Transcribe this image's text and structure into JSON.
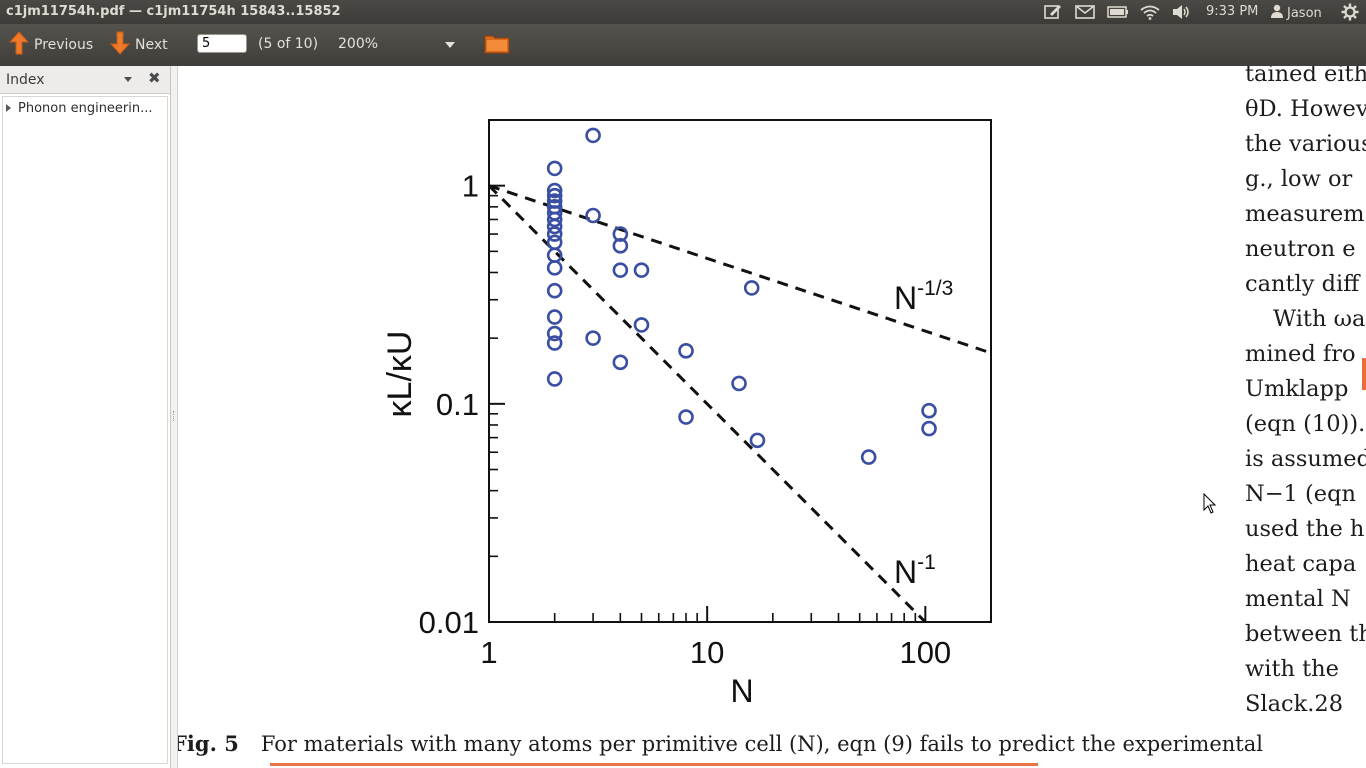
{
  "window": {
    "title": "c1jm11754h.pdf — c1jm11754h 15843..15852"
  },
  "panel": {
    "clock": "9:33 PM",
    "user": "Jason",
    "indicators": [
      "compose-icon",
      "mail-icon",
      "battery-icon",
      "wifi-icon",
      "volume-icon",
      "gear-icon"
    ]
  },
  "toolbar": {
    "previous_label": "Previous",
    "next_label": "Next",
    "page_value": "5",
    "page_count": "(5 of 10)",
    "zoom": "200%"
  },
  "sidebar": {
    "title": "Index",
    "items": [
      {
        "label": "Phonon engineerin..."
      }
    ]
  },
  "figure": {
    "caption_label": "Fig. 5",
    "caption_text": "For materials with many atoms per primitive cell (N), eqn (9) fails to predict the experimental"
  },
  "body_text": {
    "lines": [
      "tained eith",
      "θD. Howev",
      "the various",
      "g., low or",
      "measurem",
      "neutron e",
      "cantly diff",
      "With ωa",
      "mined fro",
      "Umklapp",
      "(eqn (10)).",
      "is assumed",
      "N−1 (eqn",
      "used the h",
      "heat capa",
      "mental N",
      "between th",
      "with the",
      "Slack.28"
    ]
  },
  "chart_data": {
    "type": "scatter",
    "title": "",
    "xlabel": "N",
    "ylabel": "κL/κU",
    "xscale": "log",
    "yscale": "log",
    "xlim": [
      1,
      200
    ],
    "ylim": [
      0.01,
      2
    ],
    "xticks": [
      1,
      10,
      100
    ],
    "xtick_labels": [
      "1",
      "10",
      "100"
    ],
    "yticks": [
      0.01,
      0.1,
      1
    ],
    "ytick_labels": [
      "0.01",
      "0.1",
      "1"
    ],
    "grid": false,
    "marker_color": "#3a4fa3",
    "points": [
      {
        "x": 2,
        "y": 1.2
      },
      {
        "x": 2,
        "y": 0.95
      },
      {
        "x": 2,
        "y": 0.9
      },
      {
        "x": 2,
        "y": 0.85
      },
      {
        "x": 2,
        "y": 0.8
      },
      {
        "x": 2,
        "y": 0.75
      },
      {
        "x": 2,
        "y": 0.7
      },
      {
        "x": 2,
        "y": 0.65
      },
      {
        "x": 2,
        "y": 0.6
      },
      {
        "x": 2,
        "y": 0.55
      },
      {
        "x": 2,
        "y": 0.48
      },
      {
        "x": 2,
        "y": 0.42
      },
      {
        "x": 2,
        "y": 0.33
      },
      {
        "x": 2,
        "y": 0.25
      },
      {
        "x": 2,
        "y": 0.21
      },
      {
        "x": 2,
        "y": 0.19
      },
      {
        "x": 2,
        "y": 0.13
      },
      {
        "x": 3,
        "y": 1.7
      },
      {
        "x": 3,
        "y": 0.73
      },
      {
        "x": 3,
        "y": 0.2
      },
      {
        "x": 4,
        "y": 0.6
      },
      {
        "x": 4,
        "y": 0.53
      },
      {
        "x": 4,
        "y": 0.41
      },
      {
        "x": 4,
        "y": 0.155
      },
      {
        "x": 5,
        "y": 0.41
      },
      {
        "x": 5,
        "y": 0.23
      },
      {
        "x": 8,
        "y": 0.175
      },
      {
        "x": 8,
        "y": 0.087
      },
      {
        "x": 14,
        "y": 0.124
      },
      {
        "x": 17,
        "y": 0.068
      },
      {
        "x": 16,
        "y": 0.34
      },
      {
        "x": 55,
        "y": 0.057
      },
      {
        "x": 104,
        "y": 0.093
      },
      {
        "x": 104,
        "y": 0.077
      }
    ],
    "lines": [
      {
        "name": "N-1/3",
        "label_base": "N",
        "label_exp": "-1/3",
        "exponent": -0.3333,
        "style": "dashed"
      },
      {
        "name": "N-1",
        "label_base": "N",
        "label_exp": "-1",
        "exponent": -1,
        "style": "dashed"
      }
    ]
  }
}
